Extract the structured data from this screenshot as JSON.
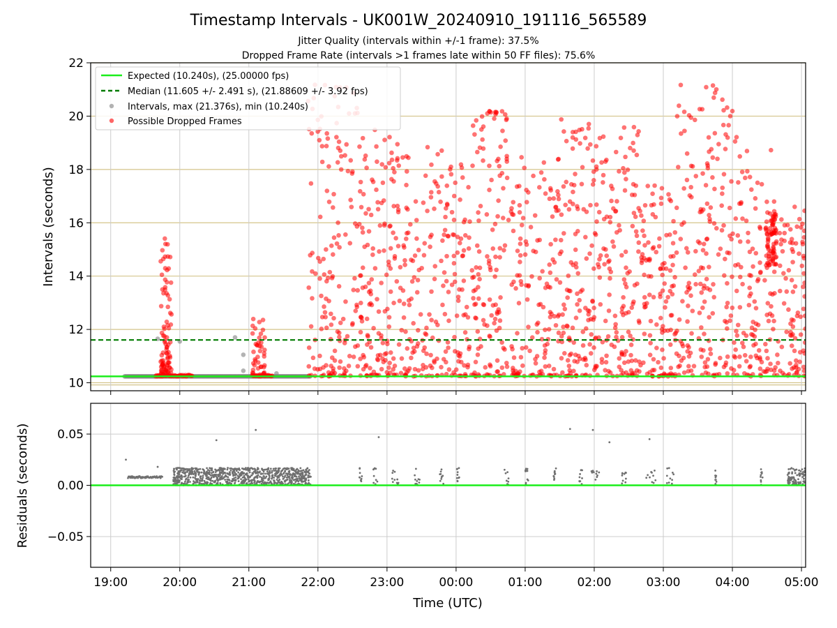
{
  "chart_data": [
    {
      "type": "scatter",
      "title": "Timestamp Intervals - UK001W_20240910_191116_565589",
      "subtitle_lines": [
        "Jitter Quality (intervals within +/-1 frame): 37.5%",
        "Dropped Frame Rate (intervals >1 frames late within 50 FF files): 75.6%"
      ],
      "xlabel": "",
      "ylabel": "Intervals (seconds)",
      "xlim_hours": [
        18.71,
        29.06
      ],
      "ylim": [
        9.7,
        22
      ],
      "yticks": [
        10,
        12,
        14,
        16,
        18,
        20,
        22
      ],
      "grid": "horizontal-tan",
      "legend_position": "top-left",
      "legend": [
        "Expected (10.240s), (25.00000 fps)",
        "Median (11.605 +/- 2.491 s), (21.88609 +/- 3.92 fps)",
        "Intervals, max (21.376s), min (10.240s)",
        "Possible Dropped Frames"
      ],
      "reference_lines": {
        "expected": 10.24,
        "median": 11.605
      },
      "series": [
        {
          "name": "Possible Dropped Frames",
          "color": "#ff0000",
          "display": "high-density scatter of ~2000 points; values summarized by segment",
          "segments": [
            {
              "x_hours": [
                19.65,
                20.18
              ],
              "y_range": [
                10.24,
                15.6
              ],
              "note": "burst near 19:50"
            },
            {
              "x_hours": [
                21.05,
                21.35
              ],
              "y_range": [
                10.24,
                12.4
              ]
            },
            {
              "x_hours": [
                21.85,
                29.06
              ],
              "y_range": [
                10.24,
                21.376
              ]
            }
          ]
        },
        {
          "name": "Intervals",
          "color": "#808080",
          "baseline_x_hours": [
            19.2,
            21.9
          ],
          "baseline_y": 10.24,
          "points": [
            [
              19.68,
              11.65
            ],
            [
              20.0,
              11.55
            ],
            [
              20.8,
              11.7
            ],
            [
              20.92,
              10.45
            ],
            [
              20.92,
              11.05
            ],
            [
              21.4,
              10.35
            ]
          ]
        }
      ]
    },
    {
      "type": "scatter",
      "xlabel": "Time (UTC)",
      "ylabel": "Residuals (seconds)",
      "xlim_hours": [
        18.71,
        29.06
      ],
      "ylim": [
        -0.08,
        0.08
      ],
      "yticks": [
        0.05,
        0.0,
        -0.05
      ],
      "ytick_labels": [
        "0.05",
        "0.00",
        "−0.05"
      ],
      "xticks": [
        "19:00",
        "20:00",
        "21:00",
        "22:00",
        "23:00",
        "00:00",
        "01:00",
        "02:00",
        "03:00",
        "04:00",
        "05:00"
      ],
      "grid": "both",
      "zero_line_color": "#1aee1a",
      "series": [
        {
          "name": "Residuals",
          "color": "#808080",
          "dense_band": {
            "x_hours": [
              19.9,
              21.9
            ],
            "y_range": [
              0.0,
              0.017
            ]
          },
          "plateau": {
            "x_hours": [
              19.25,
              19.75
            ],
            "y": 0.008
          },
          "sparse_points": [
            [
              19.22,
              0.025
            ],
            [
              19.68,
              0.018
            ],
            [
              20.53,
              0.044
            ],
            [
              21.1,
              0.054
            ],
            [
              22.88,
              0.047
            ],
            [
              25.65,
              0.055
            ],
            [
              25.98,
              0.054
            ],
            [
              26.22,
              0.042
            ],
            [
              26.8,
              0.045
            ]
          ],
          "tail_band": {
            "x_hours": [
              28.8,
              29.06
            ],
            "y_range": [
              0.0,
              0.017
            ]
          }
        }
      ]
    }
  ]
}
